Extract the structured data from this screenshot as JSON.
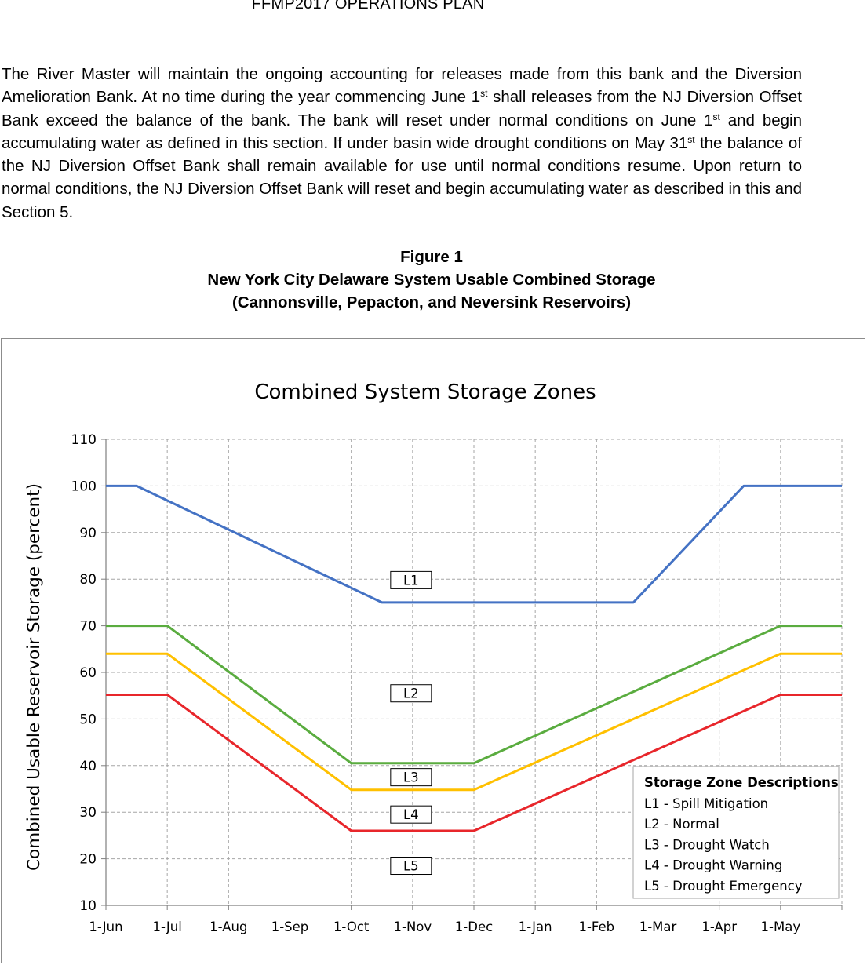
{
  "header": {
    "title": "FFMP2017 OPERATIONS PLAN"
  },
  "body_text": {
    "l1": "The River Master will maintain the ongoing accounting for releases made from this bank and the",
    "l2a": "Diversion Amelioration Bank.  At no time during the year commencing June 1",
    "l2sup": "st",
    "l2b": " shall releases from",
    "l3": "the NJ Diversion Offset Bank exceed the balance of the bank. The bank will reset under normal",
    "l4a": "conditions on June 1",
    "l4sup": "st",
    "l4b": " and begin accumulating water as defined in this section. If under basin wide",
    "l5a": "drought conditions on May 31",
    "l5sup": "st",
    "l5b": " the balance of the NJ Diversion Offset Bank shall remain available",
    "l6": "for use until normal conditions resume. Upon return to normal conditions, the NJ Diversion Offset",
    "l7": "Bank will reset and begin accumulating water as described in this and Section 5."
  },
  "figure": {
    "number": "Figure 1",
    "title": "New York City Delaware System Usable Combined Storage",
    "subtitle": "(Cannonsville, Pepacton, and Neversink Reservoirs)"
  },
  "chart_data": {
    "type": "line",
    "title": "Combined System Storage Zones",
    "xlabel": "",
    "ylabel": "Combined Usable Reservoir Storage (percent)",
    "x_unit": "months since 1-Jun",
    "xlim": [
      0,
      12
    ],
    "ylim": [
      10,
      110
    ],
    "yticks": [
      10,
      20,
      30,
      40,
      50,
      60,
      70,
      80,
      90,
      100,
      110
    ],
    "xtick_labels": [
      "1-Jun",
      "1-Jul",
      "1-Aug",
      "1-Sep",
      "1-Oct",
      "1-Nov",
      "1-Dec",
      "1-Jan",
      "1-Feb",
      "1-Mar",
      "1-Apr",
      "1-May"
    ],
    "grid": true,
    "series": [
      {
        "name": "L1 upper boundary",
        "color": "#4472c4",
        "points": [
          [
            0,
            100
          ],
          [
            0.5,
            100
          ],
          [
            4.5,
            75
          ],
          [
            8.6,
            75
          ],
          [
            10.4,
            100
          ],
          [
            12,
            100
          ]
        ]
      },
      {
        "name": "L2 upper boundary",
        "color": "#5aac3f",
        "points": [
          [
            0,
            70
          ],
          [
            1,
            70
          ],
          [
            4,
            40.5
          ],
          [
            6,
            40.5
          ],
          [
            11,
            70
          ],
          [
            12,
            70
          ]
        ]
      },
      {
        "name": "L3 upper boundary",
        "color": "#ffc000",
        "points": [
          [
            0,
            64
          ],
          [
            1,
            64
          ],
          [
            4,
            34.8
          ],
          [
            6,
            34.8
          ],
          [
            11,
            64
          ],
          [
            12,
            64
          ]
        ]
      },
      {
        "name": "L4 upper boundary",
        "color": "#e8262b",
        "points": [
          [
            0,
            55.2
          ],
          [
            1,
            55.2
          ],
          [
            4,
            26
          ],
          [
            6,
            26
          ],
          [
            11,
            55.2
          ],
          [
            12,
            55.2
          ]
        ]
      }
    ],
    "zone_labels": [
      {
        "text": "L1",
        "x": 5.0,
        "y": 79.8
      },
      {
        "text": "L2",
        "x": 5.0,
        "y": 55.5
      },
      {
        "text": "L3",
        "x": 5.0,
        "y": 37.5
      },
      {
        "text": "L4",
        "x": 5.0,
        "y": 29.5
      },
      {
        "text": "L5",
        "x": 5.0,
        "y": 18.5
      }
    ],
    "legend": {
      "title": "Storage Zone Descriptions",
      "placement": "bottom-right",
      "items": [
        "L1 - Spill Mitigation",
        "L2 - Normal",
        "L3 - Drought Watch",
        "L4 - Drought Warning",
        "L5 - Drought Emergency"
      ]
    }
  }
}
